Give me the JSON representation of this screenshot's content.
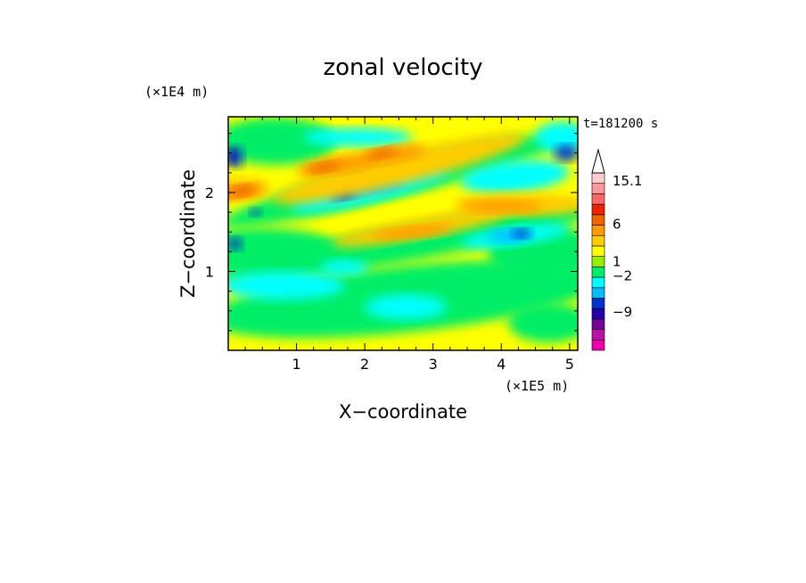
{
  "chart_data": {
    "type": "heatmap",
    "title": "zonal velocity",
    "xlabel": "X−coordinate",
    "ylabel": "Z−coordinate",
    "x_unit": "(×1E5 m)",
    "y_unit": "(×1E4 m)",
    "time_label": "t=181200 s",
    "xlim": [
      0,
      5.12
    ],
    "ylim": [
      0,
      2.96
    ],
    "x_ticks": [
      1,
      2,
      3,
      4,
      5
    ],
    "y_ticks": [
      1,
      2
    ],
    "colorbar": {
      "labels": [
        {
          "value": 15.1,
          "text": "15.1"
        },
        {
          "value": 6,
          "text": "6"
        },
        {
          "value": 1,
          "text": "1"
        },
        {
          "value": -2,
          "text": "−2"
        },
        {
          "value": -9,
          "text": "−9"
        }
      ],
      "bands": [
        {
          "color": "#ee00aa"
        },
        {
          "color": "#bb11aa"
        },
        {
          "color": "#770099"
        },
        {
          "color": "#2200aa"
        },
        {
          "color": "#0033cc"
        },
        {
          "color": "#00bbff"
        },
        {
          "color": "#00ffff"
        },
        {
          "color": "#00ee66"
        },
        {
          "color": "#99ee00"
        },
        {
          "color": "#ffff00"
        },
        {
          "color": "#ffcc00"
        },
        {
          "color": "#ff9900"
        },
        {
          "color": "#ee6600"
        },
        {
          "color": "#ee2200"
        },
        {
          "color": "#ff6666"
        },
        {
          "color": "#ff9999"
        },
        {
          "color": "#ffcccc"
        }
      ]
    }
  }
}
